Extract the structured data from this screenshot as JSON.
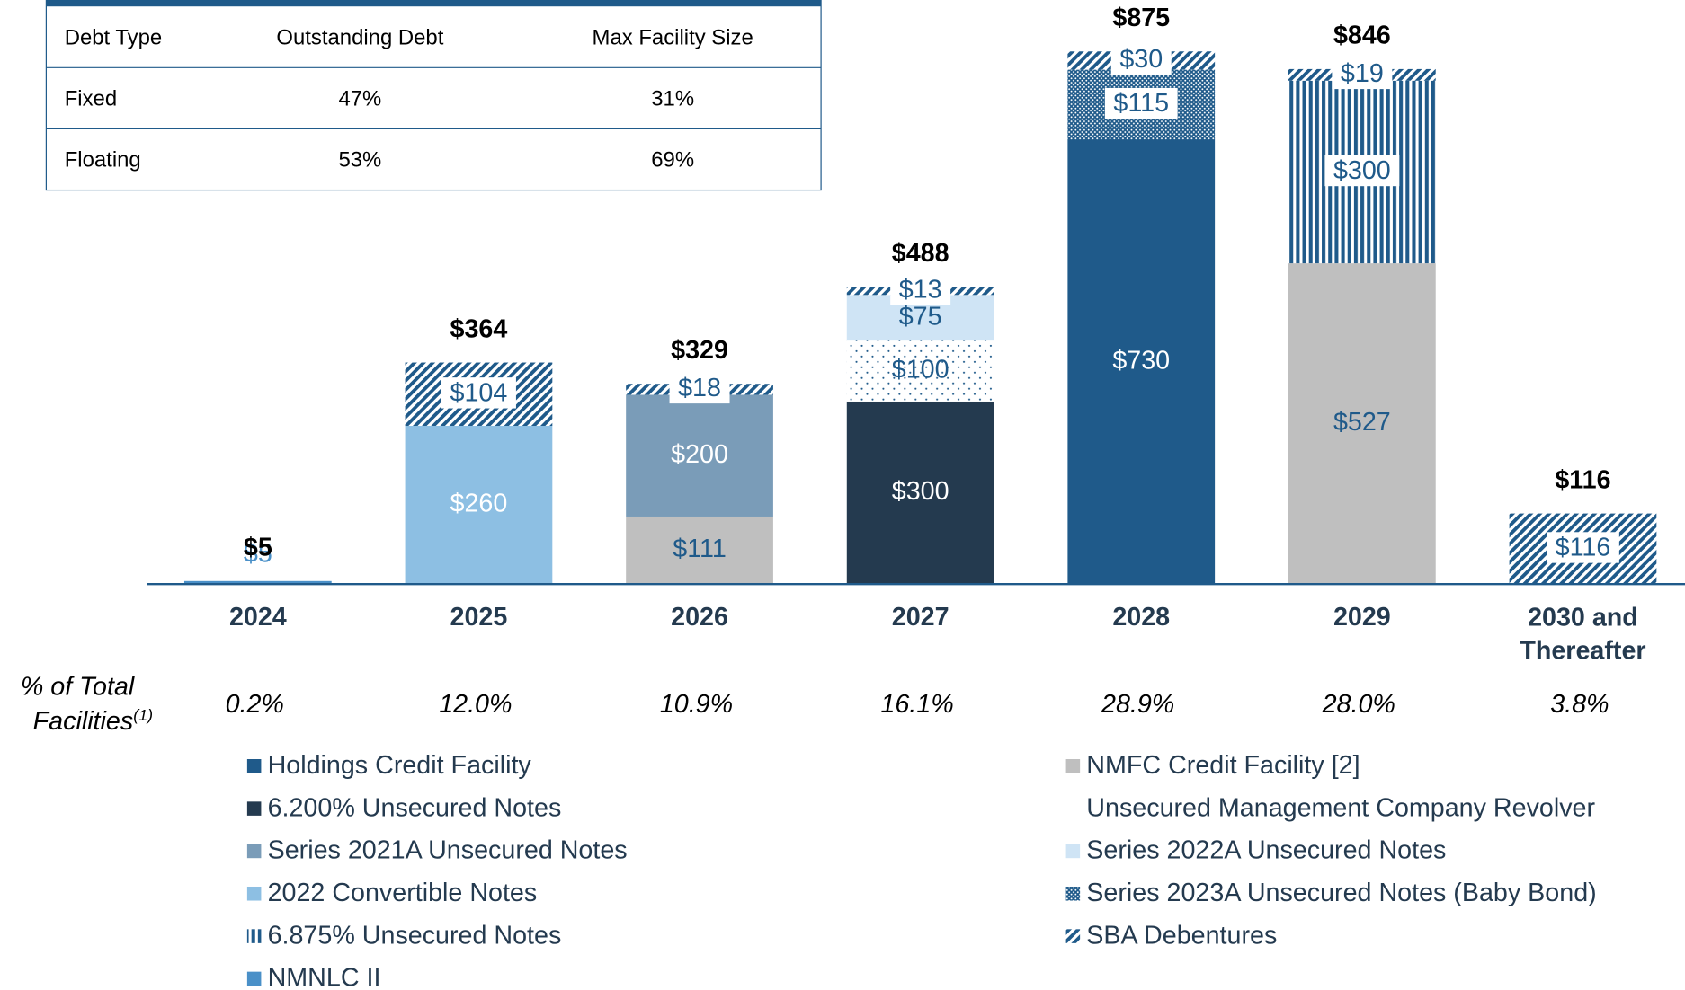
{
  "table": {
    "headers": [
      "Debt Type",
      "Outstanding Debt",
      "Max Facility Size"
    ],
    "rows": [
      [
        "Fixed",
        "47%",
        "31%"
      ],
      [
        "Floating",
        "53%",
        "69%"
      ]
    ]
  },
  "chart_data": {
    "type": "stacked-bar",
    "categories": [
      "2024",
      "2025",
      "2026",
      "2027",
      "2028",
      "2029",
      "2030 and Thereafter"
    ],
    "series": [
      {
        "name": "NMNLC II",
        "color": "#4a90c8",
        "label_color": "#4a90c8",
        "pattern": null,
        "values": [
          5,
          null,
          null,
          null,
          null,
          null,
          null
        ],
        "value_labels": [
          "$5",
          null,
          null,
          null,
          null,
          null,
          null
        ]
      },
      {
        "name": "NMFC Credit Facility [2]",
        "color": "#bfbfbf",
        "label_color": "#1f5a8a",
        "pattern": null,
        "values": [
          null,
          null,
          111,
          null,
          null,
          527,
          null
        ],
        "value_labels": [
          null,
          null,
          "$111",
          null,
          null,
          "$527",
          null
        ]
      },
      {
        "name": "Holdings Credit Facility",
        "color": "#1f5a8a",
        "label_color": "#ffffff",
        "pattern": null,
        "values": [
          null,
          null,
          null,
          null,
          730,
          null,
          null
        ],
        "value_labels": [
          null,
          null,
          null,
          null,
          "$730",
          null,
          null
        ]
      },
      {
        "name": "6.200% Unsecured Notes",
        "color": "#243a4f",
        "label_color": "#ffffff",
        "pattern": null,
        "values": [
          null,
          null,
          null,
          300,
          null,
          null,
          null
        ],
        "value_labels": [
          null,
          null,
          null,
          "$300",
          null,
          null,
          null
        ]
      },
      {
        "name": "2022 Convertible Notes",
        "color": "#8dbfe3",
        "label_color": "#ffffff",
        "pattern": null,
        "values": [
          null,
          260,
          null,
          null,
          null,
          null,
          null
        ],
        "value_labels": [
          null,
          "$260",
          null,
          null,
          null,
          null,
          null
        ]
      },
      {
        "name": "Series 2021A Unsecured Notes",
        "color": "#7a9cb8",
        "label_color": "#ffffff",
        "pattern": null,
        "values": [
          null,
          null,
          200,
          null,
          null,
          null,
          null
        ],
        "value_labels": [
          null,
          null,
          "$200",
          null,
          null,
          null,
          null
        ]
      },
      {
        "name": "Unsecured Management Company Revolver",
        "color": "#1f5a8a",
        "label_color": "#1f5a8a",
        "pattern": "dots",
        "values": [
          null,
          null,
          null,
          100,
          null,
          null,
          null
        ],
        "value_labels": [
          null,
          null,
          null,
          "$100",
          null,
          null,
          null
        ]
      },
      {
        "name": "Series 2022A Unsecured Notes",
        "color": "#cfe4f5",
        "label_color": "#1f5a8a",
        "pattern": null,
        "values": [
          null,
          null,
          null,
          75,
          null,
          null,
          null
        ],
        "value_labels": [
          null,
          null,
          null,
          "$75",
          null,
          null,
          null
        ]
      },
      {
        "name": "6.875% Unsecured Notes",
        "color": "#1f5a8a",
        "label_color": "#1f5a8a",
        "pattern": "vertical",
        "values": [
          null,
          null,
          null,
          null,
          null,
          300,
          null
        ],
        "value_labels": [
          null,
          null,
          null,
          null,
          null,
          "$300",
          null
        ]
      },
      {
        "name": "Series 2023A Unsecured Notes (Baby Bond)",
        "color": "#1f5a8a",
        "label_color": "#1f5a8a",
        "pattern": "fine-dots",
        "values": [
          null,
          null,
          null,
          null,
          115,
          null,
          null
        ],
        "value_labels": [
          null,
          null,
          null,
          null,
          "$115",
          null,
          null
        ]
      },
      {
        "name": "SBA Debentures",
        "color": "#1f5a8a",
        "label_color": "#1f5a8a",
        "pattern": "diagonal",
        "values": [
          null,
          104,
          18,
          13,
          30,
          19,
          116
        ],
        "value_labels": [
          null,
          "$104",
          "$18",
          "$13",
          "$30",
          "$19",
          "$116"
        ]
      }
    ],
    "totals": [
      5,
      364,
      329,
      488,
      875,
      846,
      116
    ],
    "total_labels": [
      "$5",
      "$364",
      "$329",
      "$488",
      "$875",
      "$846",
      "$116"
    ],
    "pct_title": "% of Total",
    "pct_title_2": "Facilities",
    "pct_note": "(1)",
    "pct": [
      0.2,
      12.0,
      10.9,
      16.1,
      28.9,
      28.0,
      3.8
    ],
    "pct_labels": [
      "0.2%",
      "12.0%",
      "10.9%",
      "16.1%",
      "28.9%",
      "28.0%",
      "3.8%"
    ]
  }
}
